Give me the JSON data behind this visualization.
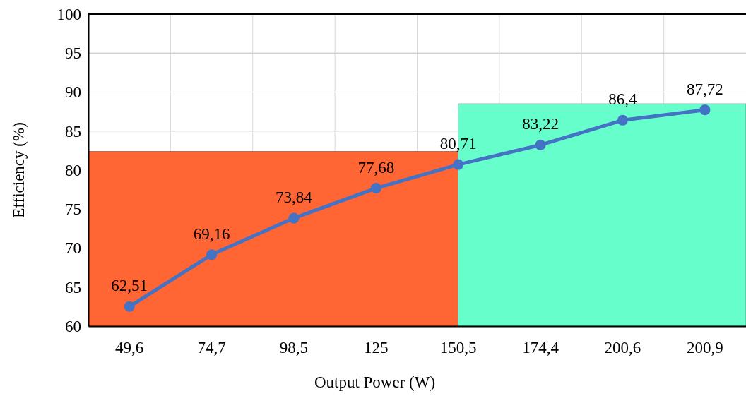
{
  "chart_data": {
    "type": "line",
    "xlabel": "Output Power (W)",
    "ylabel": "Efficiency (%)",
    "categories": [
      "49,6",
      "74,7",
      "98,5",
      "125",
      "150,5",
      "174,4",
      "200,6",
      "200,9"
    ],
    "series": [
      {
        "color": "#4472c4",
        "values": [
          62.51,
          69.16,
          73.84,
          77.68,
          80.71,
          83.22,
          86.4,
          87.72
        ],
        "value_labels": [
          "62,51",
          "69,16",
          "73,84",
          "77,68",
          "80,71",
          "83,22",
          "86,4",
          "87,72"
        ]
      }
    ],
    "ylim": [
      60,
      100
    ],
    "yticks": [
      60,
      65,
      70,
      75,
      80,
      85,
      90,
      95,
      100
    ],
    "grid": true,
    "marker": "circle",
    "line_style": "solid",
    "bands": [
      {
        "axis": "y",
        "from": 60,
        "to": 82.4,
        "color": "#ff6633"
      },
      {
        "axis": "y",
        "from": 60,
        "to": 88.5,
        "color": "#66ffcc"
      }
    ]
  }
}
